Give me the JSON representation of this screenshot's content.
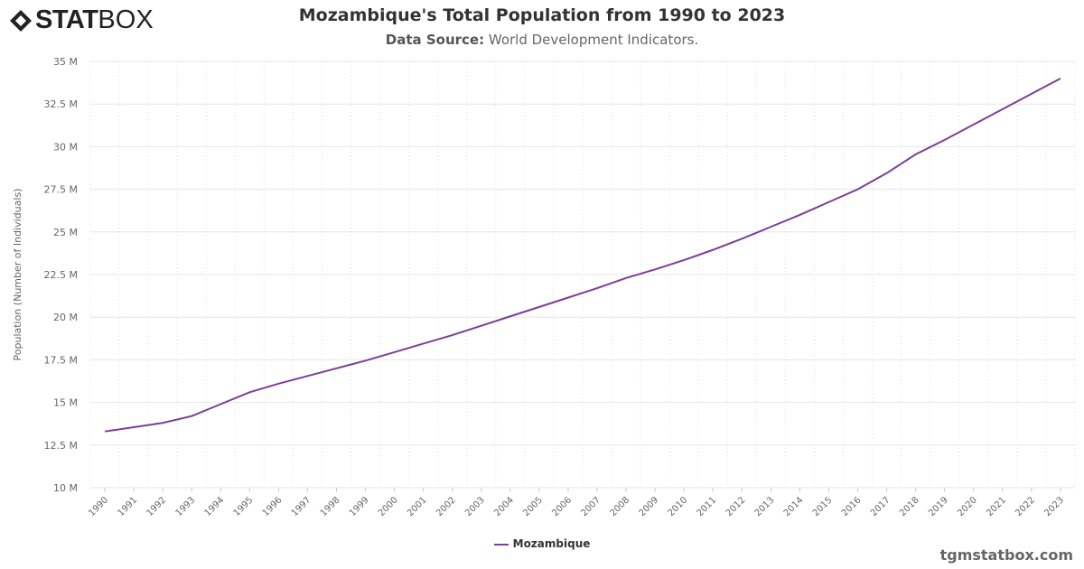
{
  "logo": {
    "bold": "STAT",
    "light": "BOX"
  },
  "header": {
    "title": "Mozambique's Total Population from 1990 to 2023",
    "source_label": "Data Source:",
    "source_value": "World Development Indicators."
  },
  "credit": "tgmstatbox.com",
  "colors": {
    "series": "#7b3f98",
    "grid": "#e6e6e6"
  },
  "chart_data": {
    "type": "line",
    "title": "Mozambique's Total Population from 1990 to 2023",
    "xlabel": "",
    "ylabel": "Population (Number of Individuals)",
    "ylim": [
      10000000,
      35000000
    ],
    "yticks": [
      10000000,
      12500000,
      15000000,
      17500000,
      20000000,
      22500000,
      25000000,
      27500000,
      30000000,
      32500000,
      35000000
    ],
    "ytick_labels": [
      "10 M",
      "12.5 M",
      "15 M",
      "17.5 M",
      "20 M",
      "22.5 M",
      "25 M",
      "27.5 M",
      "30 M",
      "32.5 M",
      "35 M"
    ],
    "grid": true,
    "legend": "bottom-center",
    "categories": [
      "1990",
      "1991",
      "1992",
      "1993",
      "1994",
      "1995",
      "1996",
      "1997",
      "1998",
      "1999",
      "2000",
      "2001",
      "2002",
      "2003",
      "2004",
      "2005",
      "2006",
      "2007",
      "2008",
      "2009",
      "2010",
      "2011",
      "2012",
      "2013",
      "2014",
      "2015",
      "2016",
      "2017",
      "2018",
      "2019",
      "2020",
      "2021",
      "2022",
      "2023"
    ],
    "series": [
      {
        "name": "Mozambique",
        "values": [
          13300000,
          13550000,
          13800000,
          14200000,
          14900000,
          15600000,
          16100000,
          16550000,
          17000000,
          17450000,
          17950000,
          18450000,
          18950000,
          19500000,
          20050000,
          20600000,
          21150000,
          21700000,
          22300000,
          22800000,
          23350000,
          23950000,
          24600000,
          25300000,
          26000000,
          26750000,
          27500000,
          28450000,
          29550000,
          30400000,
          31300000,
          32200000,
          33100000,
          34000000
        ]
      }
    ]
  }
}
